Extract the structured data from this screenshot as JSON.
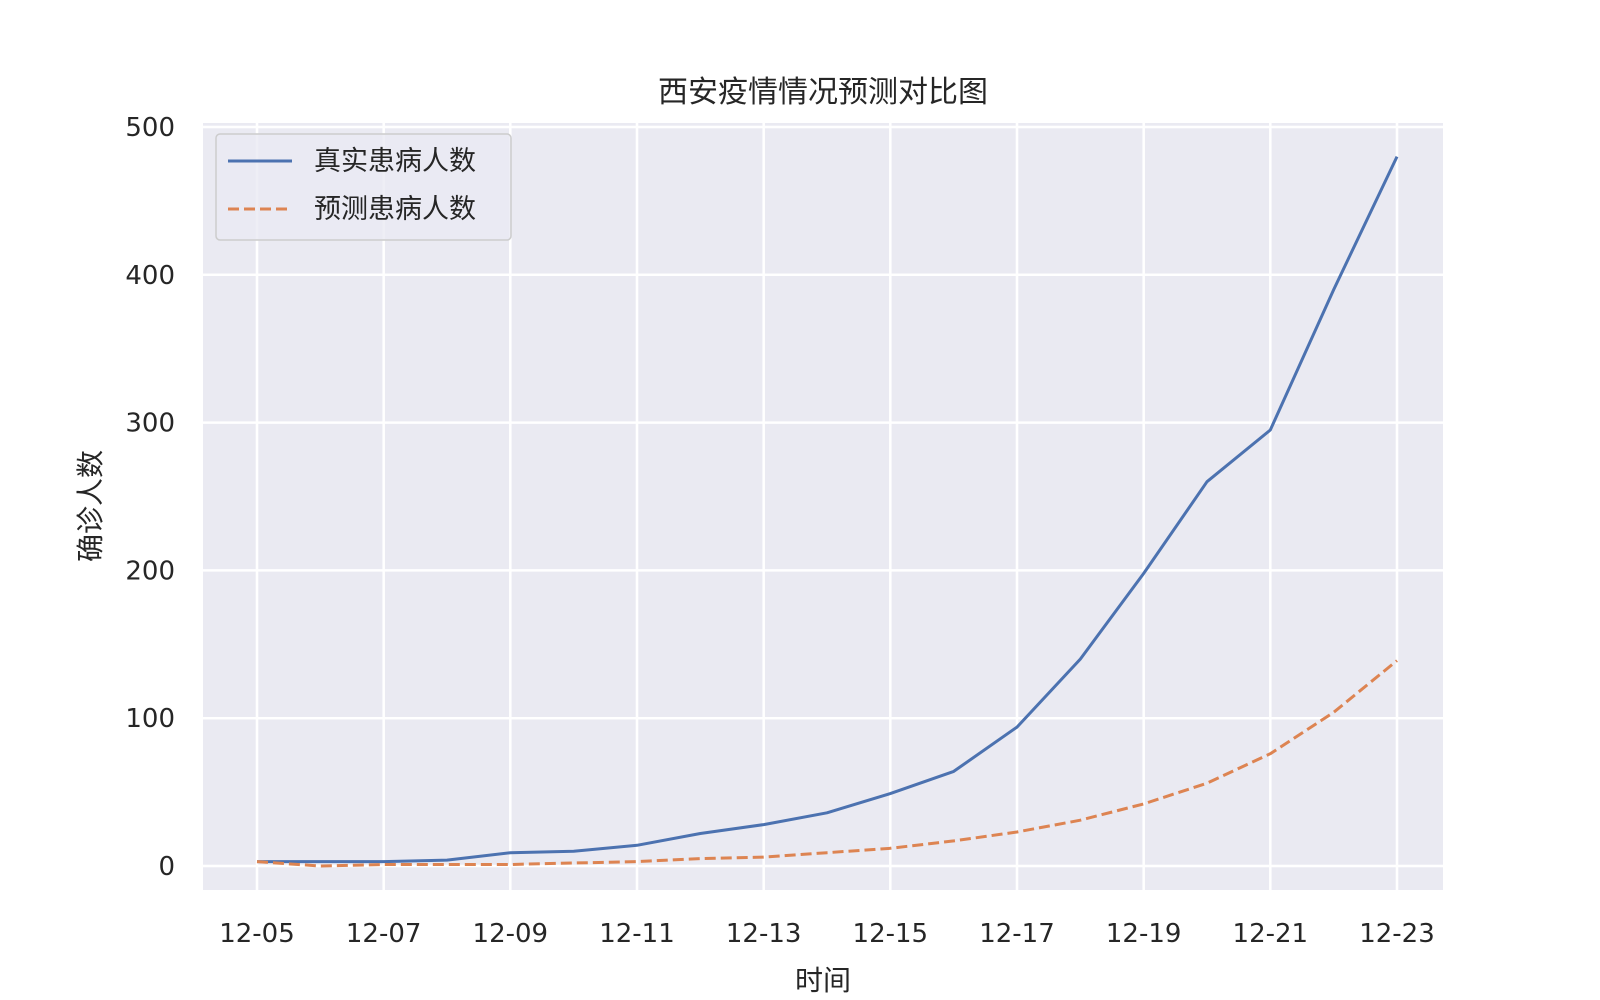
{
  "chart_data": {
    "type": "line",
    "title": "西安疫情情况预测对比图",
    "xlabel": "时间",
    "ylabel": "确诊人数",
    "x": [
      "12-05",
      "12-06",
      "12-07",
      "12-08",
      "12-09",
      "12-10",
      "12-11",
      "12-12",
      "12-13",
      "12-14",
      "12-15",
      "12-16",
      "12-17",
      "12-18",
      "12-19",
      "12-20",
      "12-21",
      "12-22",
      "12-23"
    ],
    "x_tick_labels": [
      "12-05",
      "12-07",
      "12-09",
      "12-11",
      "12-13",
      "12-15",
      "12-17",
      "12-19",
      "12-21",
      "12-23"
    ],
    "ylim": [
      -22,
      500
    ],
    "y_ticks": [
      0,
      100,
      200,
      300,
      400,
      500
    ],
    "grid": true,
    "legend_position": "top-left",
    "series": [
      {
        "name": "真实患病人数",
        "color": "#4c72b0",
        "style": "solid",
        "values": [
          3,
          3,
          3,
          4,
          9,
          10,
          14,
          22,
          28,
          36,
          49,
          64,
          94,
          140,
          198,
          260,
          295,
          390,
          480
        ]
      },
      {
        "name": "预测患病人数",
        "color": "#dd8452",
        "style": "dashed",
        "values": [
          3,
          0,
          1,
          1,
          1,
          2,
          3,
          5,
          6,
          9,
          12,
          17,
          23,
          31,
          42,
          56,
          76,
          104,
          139
        ]
      }
    ]
  }
}
